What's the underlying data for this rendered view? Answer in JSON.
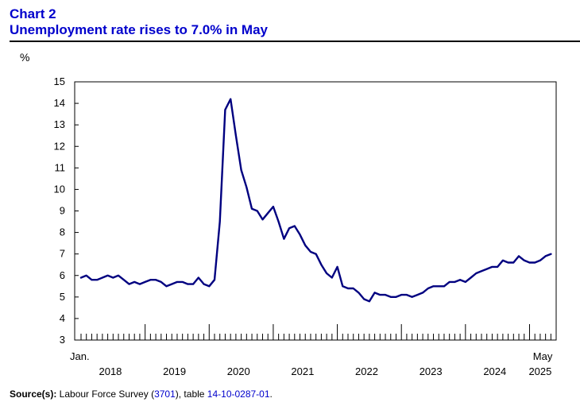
{
  "header": {
    "chart_number": "Chart 2",
    "title": "Unemployment rate rises to 7.0% in May"
  },
  "source": {
    "label": "Source(s):",
    "text_before": " Labour Force Survey (",
    "survey_number": "3701",
    "text_middle": "), table ",
    "table_number": "14-10-0287-01",
    "text_after": "."
  },
  "chart_data": {
    "type": "line",
    "title": "Unemployment rate rises to 7.0% in May",
    "ylabel": "%",
    "xlabel": "",
    "ylim": [
      3,
      15
    ],
    "yticks": [
      3,
      4,
      5,
      6,
      7,
      8,
      9,
      10,
      11,
      12,
      13,
      14,
      15
    ],
    "start_label": "Jan.",
    "end_label": "May",
    "year_labels": [
      "2018",
      "2019",
      "2020",
      "2021",
      "2022",
      "2023",
      "2024",
      "2025"
    ],
    "grid": false,
    "legend": "none",
    "line_color": "#000080",
    "series": [
      {
        "values": [
          5.9,
          6.0,
          5.8,
          5.8,
          5.9,
          6.0,
          5.9,
          6.0,
          5.8,
          5.6,
          5.7,
          5.6,
          5.7,
          5.8,
          5.8,
          5.7,
          5.5,
          5.6,
          5.7,
          5.7,
          5.6,
          5.6,
          5.9,
          5.6,
          5.5,
          5.8,
          8.5,
          13.7,
          14.2,
          12.5,
          10.9,
          10.1,
          9.1,
          9.0,
          8.6,
          8.9,
          9.2,
          8.5,
          7.7,
          8.2,
          8.3,
          7.9,
          7.4,
          7.1,
          7.0,
          6.5,
          6.1,
          5.9,
          6.4,
          5.5,
          5.4,
          5.4,
          5.2,
          4.9,
          4.8,
          5.2,
          5.1,
          5.1,
          5.0,
          5.0,
          5.1,
          5.1,
          5.0,
          5.1,
          5.2,
          5.4,
          5.5,
          5.5,
          5.5,
          5.7,
          5.7,
          5.8,
          5.7,
          5.9,
          6.1,
          6.2,
          6.3,
          6.4,
          6.4,
          6.7,
          6.6,
          6.6,
          6.9,
          6.7,
          6.6,
          6.6,
          6.7,
          6.9,
          7.0
        ]
      }
    ]
  }
}
